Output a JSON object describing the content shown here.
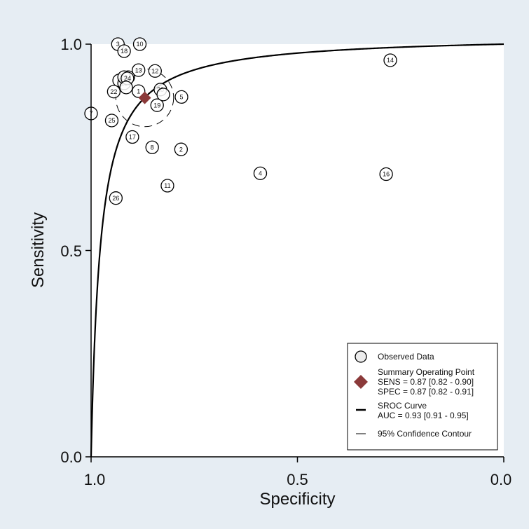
{
  "chart_data": {
    "type": "scatter",
    "subtype": "sroc",
    "xlabel": "Specificity",
    "ylabel": "Sensitivity",
    "x_reversed": true,
    "xlim": [
      1.0,
      0.0
    ],
    "ylim": [
      0.0,
      1.0
    ],
    "xticks": [
      "1.0",
      "0.5",
      "0.0"
    ],
    "yticks": [
      "0.0",
      "0.5",
      "1.0"
    ],
    "grid": false,
    "legend_position": "bottom-right",
    "colors": {
      "background": "#e6edf3",
      "plot_area": "#ffffff",
      "summary_point": "#8b3a3a",
      "marker_fill": "#ffffff",
      "line": "#000000"
    },
    "observed_points": [
      {
        "id": "1",
        "spec": 0.885,
        "sens": 0.886
      },
      {
        "id": "2",
        "spec": 0.782,
        "sens": 0.745
      },
      {
        "id": "3",
        "spec": 0.935,
        "sens": 1.0
      },
      {
        "id": "4",
        "spec": 0.59,
        "sens": 0.687
      },
      {
        "id": "5",
        "spec": 0.781,
        "sens": 0.872
      },
      {
        "id": "7",
        "spec": 1.0,
        "sens": 0.832
      },
      {
        "id": "8",
        "spec": 0.852,
        "sens": 0.75
      },
      {
        "id": "9",
        "spec": 0.932,
        "sens": 0.912
      },
      {
        "id": "10",
        "spec": 0.882,
        "sens": 1.0
      },
      {
        "id": "11",
        "spec": 0.815,
        "sens": 0.657
      },
      {
        "id": "12",
        "spec": 0.845,
        "sens": 0.935
      },
      {
        "id": "13",
        "spec": 0.885,
        "sens": 0.937
      },
      {
        "id": "14",
        "spec": 0.275,
        "sens": 0.961
      },
      {
        "id": "15",
        "spec": 0.92,
        "sens": 0.905
      },
      {
        "id": "16",
        "spec": 0.285,
        "sens": 0.685
      },
      {
        "id": "17",
        "spec": 0.9,
        "sens": 0.775
      },
      {
        "id": "18",
        "spec": 0.92,
        "sens": 0.983
      },
      {
        "id": "19",
        "spec": 0.84,
        "sens": 0.852
      },
      {
        "id": "20",
        "spec": 0.832,
        "sens": 0.89
      },
      {
        "id": "21",
        "spec": 0.91,
        "sens": 0.92
      },
      {
        "id": "22",
        "spec": 0.945,
        "sens": 0.885
      },
      {
        "id": "23",
        "spec": 0.92,
        "sens": 0.92
      },
      {
        "id": "24",
        "spec": 0.912,
        "sens": 0.917
      },
      {
        "id": "25",
        "spec": 0.95,
        "sens": 0.815
      },
      {
        "id": "26",
        "spec": 0.94,
        "sens": 0.627
      },
      {
        "id": "",
        "spec": 0.915,
        "sens": 0.895
      },
      {
        "id": "",
        "spec": 0.825,
        "sens": 0.878
      }
    ],
    "summary_point": {
      "sens": 0.87,
      "spec": 0.87
    },
    "sroc_curve": {
      "auc": 0.93
    },
    "confidence_contour": {
      "center_spec": 0.87,
      "center_sens": 0.87,
      "radius_spec": 0.07,
      "radius_sens": 0.07
    },
    "legend": {
      "observed": "Observed Data",
      "summary_title": "Summary Operating  Point",
      "summary_sens": "SENS = 0.87 [0.82 - 0.90]",
      "summary_spec": "SPEC = 0.87 [0.82 - 0.91]",
      "sroc_title": "SROC Curve",
      "sroc_auc": "AUC = 0.93 [0.91 - 0.95]",
      "contour": "95% Confidence Contour"
    }
  }
}
